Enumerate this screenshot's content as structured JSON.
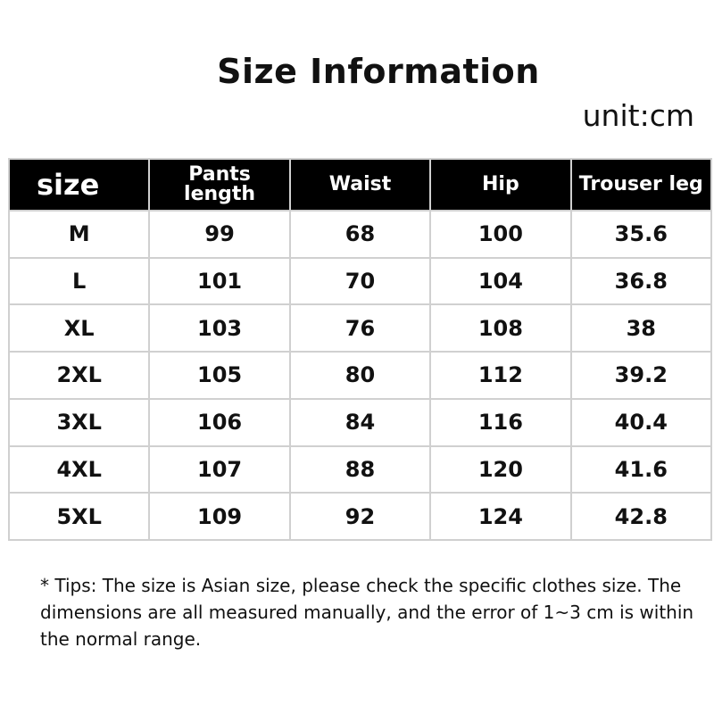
{
  "title": "Size Information",
  "unit": "unit:cm",
  "table": {
    "headers": [
      "size",
      "Pants length",
      "Waist",
      "Hip",
      "Trouser leg"
    ],
    "rows": [
      [
        "M",
        "99",
        "68",
        "100",
        "35.6"
      ],
      [
        "L",
        "101",
        "70",
        "104",
        "36.8"
      ],
      [
        "XL",
        "103",
        "76",
        "108",
        "38"
      ],
      [
        "2XL",
        "105",
        "80",
        "112",
        "39.2"
      ],
      [
        "3XL",
        "106",
        "84",
        "116",
        "40.4"
      ],
      [
        "4XL",
        "107",
        "88",
        "120",
        "41.6"
      ],
      [
        "5XL",
        "109",
        "92",
        "124",
        "42.8"
      ]
    ]
  },
  "tips": "* Tips: The size is Asian size, please check the specific clothes size. The dimensions are all measured manually, and the error of 1~3 cm is within the normal range."
}
